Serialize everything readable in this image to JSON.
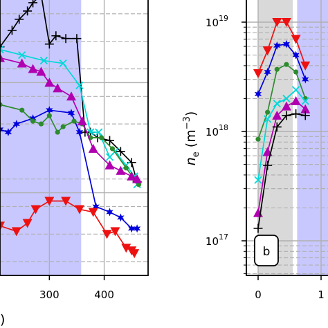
{
  "chart_data": [
    {
      "panel": "left",
      "type": "line",
      "x_scale": "linear",
      "y_scale": "linear",
      "xlim": [
        210,
        480
      ],
      "ylim": [
        0,
        10
      ],
      "x_ticks": [
        {
          "value": 300,
          "label": "300"
        },
        {
          "value": 400,
          "label": "400"
        }
      ],
      "x_label_fragment": ")",
      "shaded_x_range": [
        210,
        358
      ],
      "shaded_color": "#c8c8ff",
      "grid": "major solid, minor dashed",
      "legend": "none",
      "series": [
        {
          "color": "#000000",
          "marker": "plus",
          "x": [
            210,
            232,
            245,
            260,
            270,
            285,
            300,
            312,
            330,
            350,
            365,
            375,
            388,
            410,
            430,
            450,
            460
          ],
          "y": [
            8.3,
            8.9,
            9.3,
            9.6,
            9.9,
            10.2,
            8.4,
            8.7,
            8.6,
            8.6,
            5.2,
            5.2,
            5.0,
            4.9,
            4.5,
            4.1,
            3.4
          ]
        },
        {
          "color": "#0000dd",
          "marker": "star",
          "x": [
            210,
            225,
            240,
            270,
            300,
            340,
            355,
            385,
            410,
            430,
            450,
            460
          ],
          "y": [
            5.3,
            5.2,
            5.5,
            5.7,
            6.0,
            5.9,
            5.2,
            2.5,
            2.3,
            2.1,
            1.7,
            1.7
          ]
        },
        {
          "color": "#00d8d8",
          "marker": "x",
          "x": [
            210,
            250,
            290,
            325,
            355,
            375,
            390,
            410,
            420,
            440,
            455,
            460
          ],
          "y": [
            8.2,
            8.0,
            7.8,
            7.7,
            6.9,
            5.2,
            5.2,
            4.3,
            4.5,
            4.0,
            3.6,
            3.3
          ]
        },
        {
          "color": "#2e8b2e",
          "marker": "circle",
          "x": [
            210,
            250,
            270,
            285,
            300,
            315,
            325,
            345,
            360,
            375,
            395,
            415,
            440,
            455,
            463
          ],
          "y": [
            6.2,
            6.0,
            5.6,
            5.5,
            5.8,
            5.2,
            5.4,
            5.6,
            5.5,
            5.0,
            5.0,
            4.6,
            3.9,
            3.5,
            3.3
          ]
        },
        {
          "color": "#b000b0",
          "marker": "triangle-up",
          "x": [
            210,
            250,
            270,
            285,
            300,
            315,
            340,
            360,
            380,
            410,
            430,
            450,
            460
          ],
          "y": [
            7.9,
            7.7,
            7.5,
            7.4,
            7.0,
            6.8,
            6.5,
            5.6,
            4.6,
            4.0,
            3.8,
            3.6,
            3.5
          ]
        },
        {
          "color": "#ee1111",
          "marker": "triangle-down",
          "x": [
            210,
            240,
            260,
            275,
            300,
            330,
            355,
            380,
            405,
            420,
            440,
            450,
            455
          ],
          "y": [
            1.8,
            1.6,
            1.9,
            2.4,
            2.7,
            2.7,
            2.4,
            2.3,
            1.5,
            1.6,
            1.0,
            0.9,
            0.8
          ]
        }
      ]
    },
    {
      "panel": "right",
      "type": "line",
      "x_scale": "linear",
      "y_scale": "log",
      "xlim": [
        -0.2,
        1.7
      ],
      "ylim": [
        1.7e+16,
        1.3e+19
      ],
      "x_ticks": [
        {
          "value": 0,
          "label": "0"
        },
        {
          "value": 1,
          "label": "1"
        }
      ],
      "y_ticks": [
        {
          "value": 1e+17,
          "base": "10",
          "exp": "17"
        },
        {
          "value": 1e+18,
          "base": "10",
          "exp": "18"
        },
        {
          "value": 1e+19,
          "base": "10",
          "exp": "19"
        }
      ],
      "y_label": {
        "base": "n",
        "sub": "e",
        "unit": " (m",
        "sup": "−3",
        "close": ")"
      },
      "shaded_x_range": [
        0,
        0.55
      ],
      "shaded_color": "#d9d9d9",
      "second_shaded_x_range": [
        0.62,
        1.7
      ],
      "second_shaded_color": "#c8c8ff",
      "grid": "major solid, minor dashed",
      "legend": "none",
      "panel_label": "b",
      "series": [
        {
          "color": "#ee1111",
          "marker": "triangle-down",
          "x": [
            0,
            0.15,
            0.3,
            0.45,
            0.6,
            0.75
          ],
          "y": [
            3.4e+18,
            5.5e+18,
            1e+19,
            1e+19,
            7e+18,
            4e+18
          ]
        },
        {
          "color": "#0000dd",
          "marker": "star",
          "x": [
            0,
            0.15,
            0.3,
            0.45,
            0.6,
            0.75
          ],
          "y": [
            2.2e+18,
            3.5e+18,
            6.1e+18,
            6.3e+18,
            5e+18,
            3e+18
          ]
        },
        {
          "color": "#2e8b2e",
          "marker": "circle",
          "x": [
            0,
            0.15,
            0.3,
            0.45,
            0.6,
            0.75
          ],
          "y": [
            8.5e+17,
            1.5e+18,
            3.7e+18,
            4.1e+18,
            3.5e+18,
            2e+18
          ]
        },
        {
          "color": "#00d8d8",
          "marker": "x",
          "x": [
            0,
            0.15,
            0.3,
            0.45,
            0.6,
            0.75
          ],
          "y": [
            3.6e+17,
            1.3e+18,
            1.8e+18,
            2e+18,
            2.4e+18,
            1.9e+18
          ]
        },
        {
          "color": "#b000b0",
          "marker": "triangle-up",
          "x": [
            0,
            0.15,
            0.3,
            0.45,
            0.6,
            0.75
          ],
          "y": [
            1.8e+17,
            6.5e+17,
            1.4e+18,
            1.7e+18,
            1.9e+18,
            1.6e+18
          ]
        },
        {
          "color": "#000000",
          "marker": "plus",
          "x": [
            0,
            0.15,
            0.3,
            0.45,
            0.6,
            0.75
          ],
          "y": [
            1.3e+17,
            4.9e+17,
            1.1e+18,
            1.4e+18,
            1.45e+18,
            1.4e+18
          ]
        }
      ]
    }
  ]
}
